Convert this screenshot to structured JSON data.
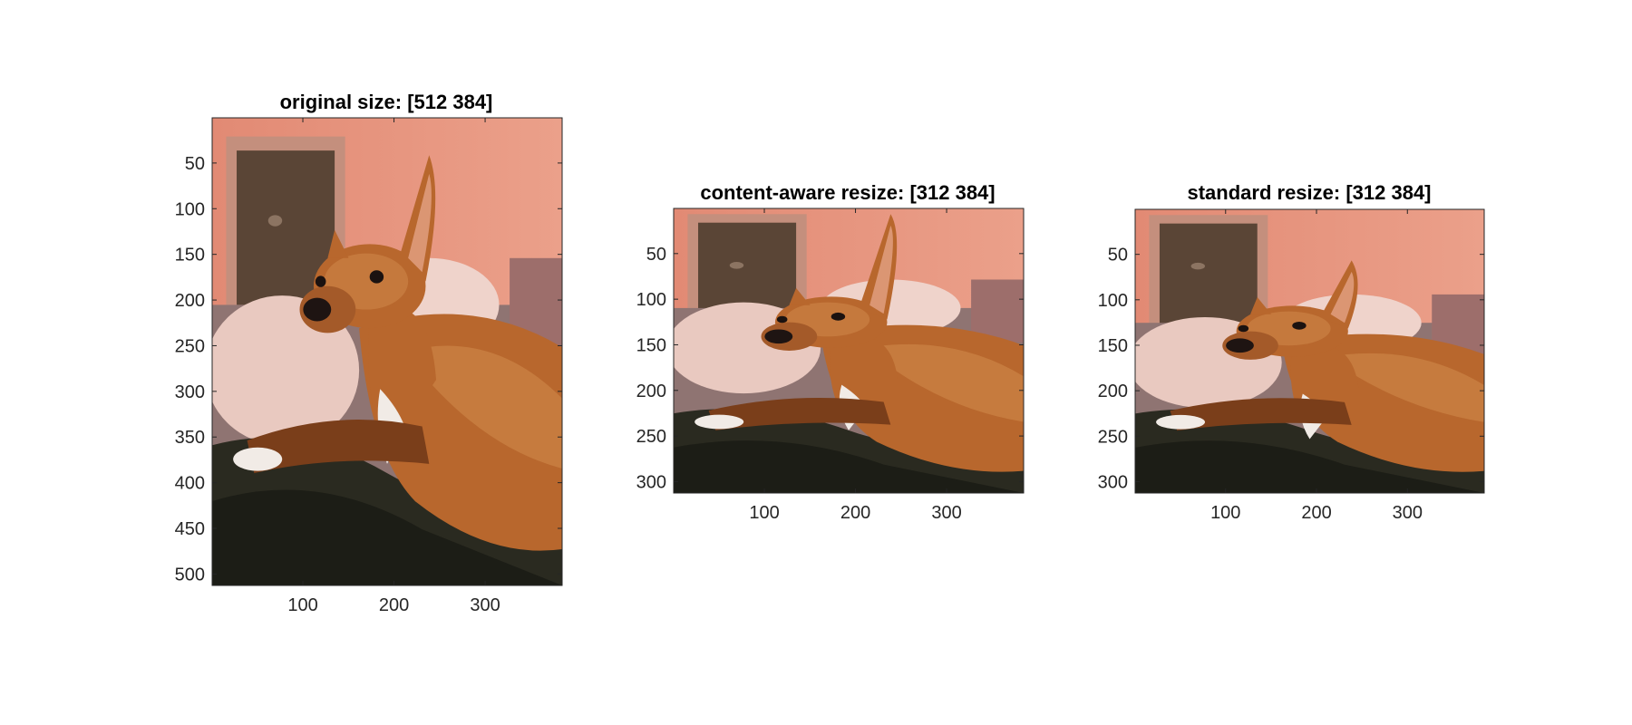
{
  "figure": {
    "panels": [
      {
        "id": "original",
        "title": "original size: [512 384]",
        "image_rows": 512,
        "image_cols": 384,
        "xticks": [
          100,
          200,
          300
        ],
        "yticks": [
          50,
          100,
          150,
          200,
          250,
          300,
          350,
          400,
          450,
          500
        ],
        "content": "dog-original"
      },
      {
        "id": "content-aware",
        "title": "content-aware resize: [312 384]",
        "image_rows": 312,
        "image_cols": 384,
        "xticks": [
          100,
          200,
          300
        ],
        "yticks": [
          50,
          100,
          150,
          200,
          250,
          300
        ],
        "content": "dog-seam-carved"
      },
      {
        "id": "standard",
        "title": "standard resize: [312 384]",
        "image_rows": 312,
        "image_cols": 384,
        "xticks": [
          100,
          200,
          300
        ],
        "yticks": [
          50,
          100,
          150,
          200,
          250,
          300
        ],
        "content": "dog-squashed"
      }
    ],
    "colors": {
      "wall": "#e28a74",
      "wall_light": "#eba08a",
      "door_dark": "#5a4536",
      "pillow": "#e9c9c0",
      "couch": "#8f7472",
      "blanket": "#2a2a20",
      "dog_body": "#b8672d",
      "dog_light": "#d18c4d",
      "dog_shadow": "#7a3e1a",
      "chest_white": "#f1ebe6"
    }
  }
}
